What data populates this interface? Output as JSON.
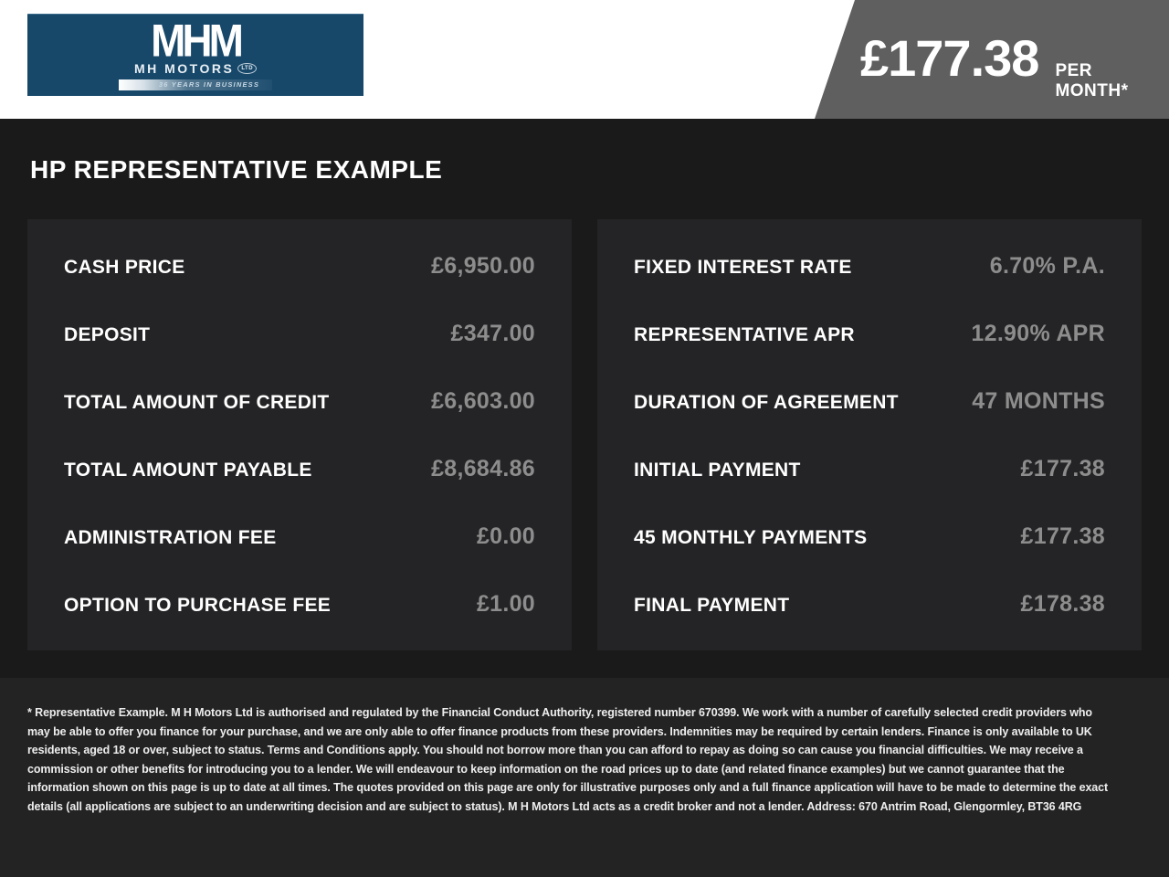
{
  "header": {
    "logo": {
      "monogram": "MHM",
      "company": "MH MOTORS",
      "suffix": "LTD",
      "tagline": "36 YEARS IN BUSINESS"
    },
    "price_banner": {
      "amount": "£177.38",
      "period": "PER MONTH*"
    }
  },
  "page_title": "HP REPRESENTATIVE EXAMPLE",
  "finance_tables": {
    "left": {
      "rows": [
        {
          "label": "CASH PRICE",
          "value": "£6,950.00"
        },
        {
          "label": "DEPOSIT",
          "value": "£347.00"
        },
        {
          "label": "TOTAL AMOUNT OF CREDIT",
          "value": "£6,603.00"
        },
        {
          "label": "TOTAL AMOUNT PAYABLE",
          "value": "£8,684.86"
        },
        {
          "label": "ADMINISTRATION FEE",
          "value": "£0.00"
        },
        {
          "label": "OPTION TO PURCHASE FEE",
          "value": "£1.00"
        }
      ]
    },
    "right": {
      "rows": [
        {
          "label": "FIXED INTEREST RATE",
          "value": "6.70% P.A."
        },
        {
          "label": "REPRESENTATIVE APR",
          "value": "12.90% APR"
        },
        {
          "label": "DURATION OF AGREEMENT",
          "value": "47 MONTHS"
        },
        {
          "label": "INITIAL PAYMENT",
          "value": "£177.38"
        },
        {
          "label": "45 MONTHLY PAYMENTS",
          "value": "£177.38"
        },
        {
          "label": "FINAL PAYMENT",
          "value": "£178.38"
        }
      ]
    }
  },
  "disclaimer": "* Representative Example. M H Motors Ltd is authorised and regulated by the Financial Conduct Authority, registered number 670399. We work with a number of carefully selected credit providers who may be able to offer you finance for your purchase, and we are only able to offer finance products from these providers. Indemnities may be required by certain lenders. Finance is only available to UK residents, aged 18 or over, subject to status. Terms and Conditions apply. You should not borrow more than you can afford to repay as doing so can cause you financial difficulties. We may receive a commission or other benefits for introducing you to a lender. We will endeavour to keep information on the road prices up to date (and related finance examples) but we cannot guarantee that the information shown on this page is up to date at all times. The quotes provided on this page are only for illustrative purposes only and a full finance application will have to be made to determine the exact details (all applications are subject to an underwriting decision and are subject to status). M H Motors Ltd acts as a credit broker and not a lender. Address: 670 Antrim Road, Glengormley, BT36 4RG",
  "colors": {
    "logo_navy": "#17486a",
    "banner_gray": "#5f5f5f",
    "page_background": "#1a1a1a",
    "panel_background": "#242426",
    "value_gray": "#8d8d8d"
  }
}
